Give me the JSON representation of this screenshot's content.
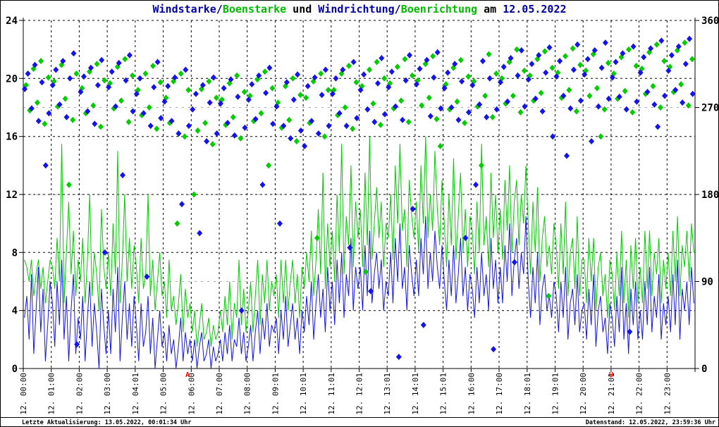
{
  "window": {
    "kind": "weather-station-chart-image"
  },
  "colors": {
    "background": "#FFFFFF",
    "border": "#000000",
    "title_blue": "#0000A0",
    "title_green": "#00BB00",
    "text_black": "#000000",
    "wind_blue": "#1414E8",
    "gust_green": "#00CC00",
    "grid_major": "#000000",
    "grid_minor": "#ABABAB",
    "annotation_red": "#FF0000"
  },
  "title": {
    "full_text": "Windstarke/Boenstarke und Windrichtung/Boenrichtung am 12.05.2022",
    "segments": [
      {
        "text": "Windstarke/",
        "color": "#0000A0"
      },
      {
        "text": "Boenstarke",
        "color": "#00BB00"
      },
      {
        "text": " und ",
        "color": "#000000"
      },
      {
        "text": "Windrichtung/",
        "color": "#0000A0"
      },
      {
        "text": "Boenrichtung",
        "color": "#00BB00"
      },
      {
        "text": " am ",
        "color": "#000000"
      },
      {
        "text": "12.05.2022",
        "color": "#0000A0"
      }
    ]
  },
  "footer": {
    "left": "Letzte Aktualisierung: 13.05.2022, 00:01:34 Uhr",
    "right": "Datenstand: 12.05.2022, 23:59:36 Uhr"
  },
  "chart_data": {
    "type": "line+scatter",
    "title": "Windstarke/Boenstarke und Windrichtung/Boenrichtung am 12.05.2022",
    "grid": "dashed, vertical per hour, horizontal per 4 units (black) and per 90 deg (gray)",
    "left_axis": {
      "range": [
        0,
        24
      ],
      "ticks": [
        0,
        4,
        8,
        12,
        16,
        20,
        24
      ]
    },
    "right_axis": {
      "range": [
        0,
        360
      ],
      "ticks": [
        0,
        90,
        180,
        270,
        360
      ]
    },
    "x_axis": {
      "hours": 24,
      "tick_labels": [
        "12. 00:00",
        "12. 01:00",
        "12. 02:00",
        "12. 03:00",
        "12. 04:01",
        "12. 05:00",
        "12. 06:00",
        "12. 07:00",
        "12. 08:00",
        "12. 09:01",
        "12. 10:01",
        "12. 11:01",
        "12. 12:01",
        "12. 13:01",
        "12. 14:01",
        "12. 15:01",
        "12. 16:00",
        "12. 17:00",
        "12. 18:01",
        "12. 19:01",
        "12. 20:00",
        "12. 21:01",
        "12. 22:00",
        "12. 23:00"
      ]
    },
    "annotations": [
      {
        "text": "A",
        "minute": 352,
        "color": "#FF0000",
        "name": "sunrise-marker"
      },
      {
        "text": "U",
        "minute": 1260,
        "color": "#FF0000",
        "name": "sunset-marker"
      }
    ],
    "series": [
      {
        "name": "Windstarke",
        "color": "#1414E8",
        "axis": "left",
        "type": "line",
        "step_minutes": 5,
        "values": [
          3.5,
          5,
          2,
          6.5,
          1,
          4,
          7,
          2.5,
          5.5,
          0.5,
          3,
          6,
          4.5,
          1.5,
          6,
          3,
          7.5,
          2,
          5,
          0.5,
          4,
          6.5,
          1,
          3.5,
          2,
          5,
          0.5,
          3.5,
          6,
          1.5,
          4.5,
          2.5,
          0,
          5.5,
          3,
          1,
          4,
          1,
          5.5,
          2.5,
          7,
          0.5,
          3.5,
          6,
          2,
          4.5,
          1.5,
          5,
          3,
          0.5,
          4.5,
          1.5,
          2.5,
          5,
          1,
          3.5,
          0,
          2,
          4,
          1.5,
          2.5,
          0.5,
          3,
          1,
          2,
          0,
          1.5,
          3.5,
          0.5,
          2.5,
          1,
          2,
          0.5,
          2,
          0,
          1.5,
          2.5,
          0.5,
          1,
          2,
          0,
          1.5,
          0.5,
          1,
          2,
          0.5,
          2.5,
          1,
          3,
          0.5,
          2,
          1.5,
          3.5,
          1,
          2.5,
          0.5,
          1.5,
          3,
          0.5,
          2.5,
          4,
          1,
          3.5,
          2,
          4.5,
          1.5,
          3,
          2.5,
          3.5,
          1,
          4,
          2,
          5,
          1.5,
          3,
          4.5,
          2,
          3.5,
          1,
          4,
          2.5,
          5,
          3,
          6,
          2,
          4.5,
          6.5,
          3.5,
          5.5,
          2.5,
          7,
          4,
          6,
          3,
          7.5,
          4.5,
          8,
          3.5,
          6.5,
          5,
          9,
          4,
          7,
          5.5,
          7,
          4,
          8.5,
          5,
          9.5,
          4.5,
          6.5,
          8,
          5.5,
          7.5,
          4,
          6,
          5,
          8,
          4.5,
          9,
          6,
          10,
          5.5,
          7,
          4,
          8.5,
          6.5,
          5,
          7.5,
          5,
          9,
          6.5,
          10.5,
          5.5,
          8,
          6,
          9.5,
          7,
          5.5,
          8.5,
          6,
          4,
          7.5,
          5,
          8.5,
          4.5,
          6.5,
          9,
          5,
          7,
          4,
          6.5,
          5.5,
          3.5,
          7,
          4.5,
          8,
          5,
          6.5,
          4,
          9,
          5.5,
          7.5,
          4.5,
          7,
          4.5,
          8.5,
          6,
          10,
          5,
          7.5,
          9,
          5.5,
          8,
          6.5,
          10.5,
          6,
          3.5,
          7,
          4.5,
          8,
          3,
          5.5,
          6.5,
          4,
          5,
          3.5,
          6,
          5,
          2.5,
          6,
          3.5,
          7,
          2,
          4.5,
          5.5,
          3,
          6.5,
          2.5,
          4,
          4.5,
          2,
          5.5,
          3,
          6.5,
          1.5,
          4,
          5,
          2.5,
          3.5,
          1,
          4.5,
          3.5,
          1.5,
          5,
          2.5,
          7,
          2,
          4.5,
          1,
          5.5,
          3,
          6,
          2,
          4,
          2,
          6,
          3,
          7,
          2.5,
          5,
          3.5,
          6.5,
          2,
          4.5,
          3,
          5,
          2.5,
          6.5,
          3,
          7.5,
          2,
          5.5,
          4,
          6,
          3,
          7,
          4.5
        ]
      },
      {
        "name": "Boenstarke",
        "color": "#00CC00",
        "axis": "left",
        "type": "line",
        "step_minutes": 5,
        "values": [
          7.5,
          7,
          6,
          7.5,
          5,
          6.5,
          7.5,
          5.5,
          7,
          4.5,
          6,
          7.5,
          7,
          5.5,
          9,
          6,
          15.5,
          4.5,
          8,
          11.5,
          6.5,
          9.5,
          5,
          7.5,
          6,
          9,
          4.5,
          7.5,
          12,
          5,
          8,
          6.5,
          4,
          11,
          7,
          5.5,
          8,
          5,
          10,
          6.5,
          15,
          4.5,
          7.5,
          12,
          6,
          9,
          5.5,
          8.5,
          7,
          4.5,
          9,
          5.5,
          6.5,
          12,
          5,
          7.5,
          4,
          6,
          8,
          5,
          6,
          3.5,
          7.5,
          4,
          5,
          3,
          4.5,
          6.5,
          2.5,
          5.5,
          3.5,
          4.5,
          2.5,
          4,
          1.5,
          3,
          4.5,
          2,
          2.5,
          3.5,
          1.5,
          3,
          2,
          2.5,
          4,
          2.5,
          5,
          3,
          6,
          2,
          4.5,
          3.5,
          7.5,
          3,
          5.5,
          2.5,
          4,
          6,
          2.5,
          5,
          7.5,
          3,
          6.5,
          4.5,
          7.5,
          4,
          6,
          5,
          6.5,
          3.5,
          7.5,
          4.5,
          7.5,
          4,
          6,
          7.5,
          4.5,
          6.5,
          3.5,
          7,
          5.5,
          8,
          6,
          9.5,
          5,
          7.5,
          11,
          6.5,
          13.5,
          5.5,
          10,
          7,
          9.5,
          6,
          12,
          8,
          15.5,
          6.5,
          10.5,
          8.5,
          14,
          7,
          11.5,
          9,
          11,
          7,
          13.5,
          8.5,
          16,
          7.5,
          10,
          12.5,
          9,
          11.5,
          7,
          10,
          9,
          12,
          7.5,
          14,
          10,
          15.5,
          9.5,
          11,
          7,
          13,
          10.5,
          9,
          11.5,
          8,
          14,
          10,
          16,
          9,
          12,
          9.5,
          15,
          11,
          8.5,
          13,
          10,
          7,
          12,
          8.5,
          14.5,
          7.5,
          10.5,
          13.5,
          8,
          11,
          7,
          10.5,
          9.5,
          6.5,
          11.5,
          8,
          15.5,
          8.5,
          10.5,
          7,
          13.5,
          9,
          12,
          8,
          11,
          7.5,
          13,
          9.5,
          14,
          8,
          11.5,
          13,
          8.5,
          12,
          10,
          14,
          10,
          6.5,
          11.5,
          8,
          12.5,
          6,
          9,
          10.5,
          7,
          8.5,
          6.5,
          10,
          8.5,
          5.5,
          10,
          6.5,
          11.5,
          5,
          8,
          9,
          5.5,
          10.5,
          5,
          7.5,
          7.5,
          4.5,
          9,
          6,
          9,
          4,
          7,
          8,
          5,
          6.5,
          3.5,
          7.5,
          6.5,
          4,
          8,
          5,
          9.5,
          4.5,
          7.5,
          3.5,
          8.5,
          5.5,
          9,
          4.5,
          7,
          4.5,
          9.5,
          5.5,
          9.5,
          5,
          8,
          6.5,
          9,
          4.5,
          7.5,
          5.5,
          8,
          5,
          9.5,
          6,
          10.5,
          5,
          8.5,
          7,
          9.5,
          6,
          10,
          8
        ]
      }
    ],
    "scatter": [
      {
        "name": "Windrichtung",
        "color": "#1414E8",
        "axis": "right",
        "marker": "diamond",
        "minute_offsets": [
          3,
          10,
          18,
          25,
          33,
          40,
          48,
          55
        ],
        "deg_by_hour": [
          [
            289,
            305,
            269,
            314,
            256,
            296,
            210,
            264
          ],
          [
            293,
            309,
            273,
            318,
            260,
            300,
            326,
            25
          ],
          [
            286,
            302,
            266,
            311,
            253,
            293,
            319,
            120
          ],
          [
            291,
            307,
            271,
            316,
            200,
            298,
            324,
            266
          ],
          [
            284,
            300,
            264,
            95,
            251,
            291,
            317,
            259
          ],
          [
            276,
            292,
            256,
            301,
            243,
            170,
            309,
            251
          ],
          [
            268,
            284,
            140,
            293,
            235,
            275,
            301,
            243
          ],
          [
            274,
            290,
            254,
            299,
            241,
            281,
            60,
            249
          ],
          [
            278,
            294,
            258,
            303,
            190,
            285,
            311,
            253
          ],
          [
            271,
            150,
            251,
            296,
            238,
            278,
            304,
            246
          ],
          [
            230,
            292,
            256,
            301,
            243,
            283,
            309,
            251
          ],
          [
            284,
            300,
            264,
            309,
            251,
            125,
            317,
            259
          ],
          [
            288,
            304,
            268,
            80,
            255,
            295,
            321,
            263
          ],
          [
            291,
            307,
            271,
            12,
            257,
            298,
            324,
            165
          ],
          [
            294,
            310,
            45,
            319,
            261,
            301,
            327,
            269
          ],
          [
            290,
            306,
            270,
            315,
            257,
            297,
            135,
            265
          ],
          [
            293,
            190,
            273,
            318,
            260,
            300,
            20,
            268
          ],
          [
            296,
            312,
            276,
            321,
            110,
            303,
            329,
            271
          ],
          [
            299,
            315,
            279,
            324,
            266,
            306,
            332,
            240
          ],
          [
            302,
            318,
            282,
            220,
            269,
            309,
            335,
            277
          ],
          [
            304,
            320,
            235,
            329,
            271,
            311,
            337,
            279
          ],
          [
            301,
            317,
            281,
            326,
            268,
            38,
            333,
            276
          ],
          [
            306,
            322,
            286,
            331,
            273,
            250,
            339,
            282
          ],
          [
            308,
            324,
            288,
            333,
            275,
            315,
            341,
            284
          ]
        ]
      },
      {
        "name": "Boenrichtung",
        "color": "#00CC00",
        "axis": "right",
        "marker": "diamond",
        "minute_offsets": [
          6,
          14,
          22,
          30,
          38,
          46,
          54
        ],
        "deg_by_hour": [
          [
            293,
            267,
            310,
            275,
            318,
            253,
            301
          ],
          [
            297,
            271,
            314,
            279,
            190,
            257,
            305
          ],
          [
            290,
            264,
            307,
            272,
            315,
            250,
            298
          ],
          [
            295,
            269,
            312,
            277,
            320,
            255,
            303
          ],
          [
            288,
            262,
            305,
            270,
            313,
            248,
            296
          ],
          [
            280,
            254,
            297,
            150,
            305,
            240,
            288
          ],
          [
            180,
            246,
            289,
            254,
            297,
            232,
            280
          ],
          [
            278,
            252,
            295,
            260,
            303,
            238,
            286
          ],
          [
            282,
            256,
            299,
            264,
            307,
            210,
            290
          ],
          [
            275,
            249,
            292,
            257,
            300,
            235,
            283
          ],
          [
            280,
            254,
            297,
            135,
            305,
            240,
            288
          ],
          [
            288,
            262,
            305,
            270,
            313,
            248,
            296
          ],
          [
            292,
            100,
            309,
            274,
            317,
            252,
            300
          ],
          [
            295,
            269,
            312,
            277,
            320,
            255,
            303
          ],
          [
            298,
            272,
            315,
            280,
            323,
            258,
            230
          ],
          [
            294,
            268,
            311,
            276,
            319,
            254,
            302
          ],
          [
            297,
            271,
            210,
            282,
            325,
            260,
            305
          ],
          [
            300,
            274,
            317,
            282,
            330,
            265,
            308
          ],
          [
            303,
            277,
            320,
            285,
            328,
            75,
            311
          ],
          [
            306,
            280,
            323,
            288,
            331,
            266,
            314
          ],
          [
            308,
            282,
            325,
            290,
            240,
            268,
            316
          ],
          [
            305,
            279,
            322,
            287,
            330,
            265,
            313
          ],
          [
            310,
            284,
            327,
            292,
            335,
            270,
            318
          ],
          [
            312,
            286,
            329,
            294,
            337,
            272,
            320
          ]
        ]
      }
    ]
  }
}
